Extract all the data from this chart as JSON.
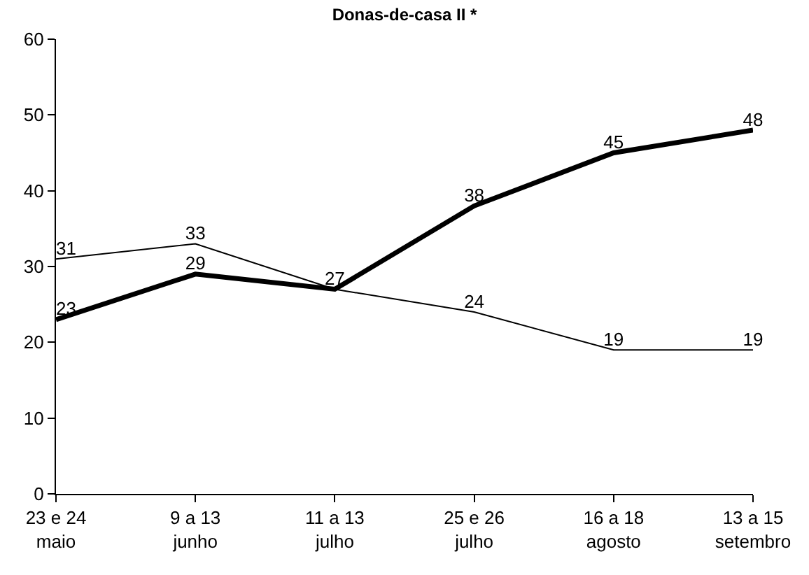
{
  "chart_data": {
    "type": "line",
    "title": "Donas-de-casa II *",
    "categories": [
      "23 e 24\nmaio",
      "9 a 13\njunho",
      "11 a 13\njulho",
      "25 e 26\njulho",
      "16 a 18\nagosto",
      "13 a 15\nsetembro"
    ],
    "series": [
      {
        "color": "#000000",
        "values": [
          23,
          29,
          27,
          38,
          45,
          48
        ],
        "value_labels": [
          "23",
          "29",
          "27",
          "38",
          "45",
          "48"
        ]
      },
      {
        "color": "#000000",
        "values": [
          31,
          33,
          27,
          24,
          19,
          19
        ],
        "value_labels": [
          "31",
          "33",
          null,
          "24",
          "19",
          "19"
        ]
      }
    ],
    "ylim": [
      0,
      60
    ],
    "yticks": [
      0,
      10,
      20,
      30,
      40,
      50,
      60
    ],
    "grid": false,
    "marker": "none",
    "line_style": "solid"
  }
}
